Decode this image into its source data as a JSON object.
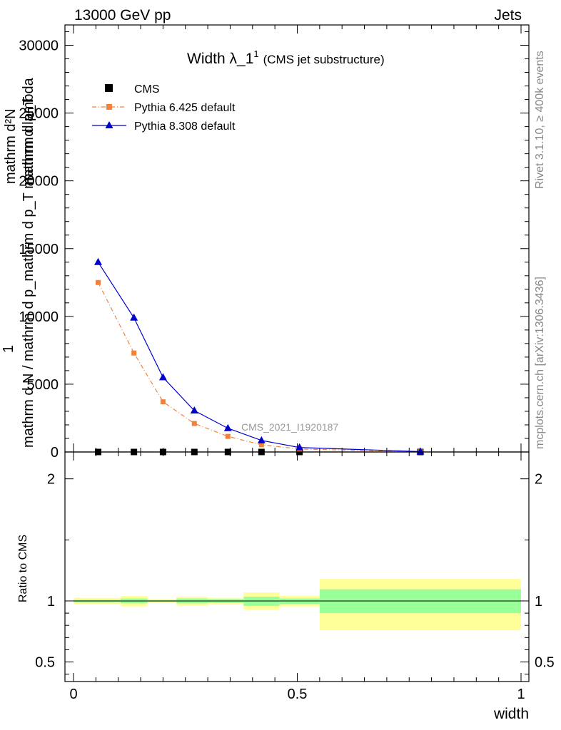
{
  "header": {
    "energy_label": "13000 GeV pp",
    "category_label": "Jets"
  },
  "side_labels": {
    "rivet": "Rivet 3.1.10, ≥ 400k events",
    "mcplots": "mcplots.cern.ch [arXiv:1306.3436]"
  },
  "watermark": "CMS_2021_I1920187",
  "chart_data": [
    {
      "type": "line",
      "title": "Width λ_1",
      "title_sup": "1",
      "subtitle": "(CMS jet substructure)",
      "ylabel_lines": [
        "mathrm d²N",
        "1",
        "mathrm d N / mathrm d p_mathrm d p_T mathrm d lambda",
        "mathrm d p_T"
      ],
      "xlim": [
        0,
        1
      ],
      "ylim": [
        0,
        31500
      ],
      "x_ticks": [],
      "y_ticks": [
        0,
        5000,
        10000,
        15000,
        20000,
        25000,
        30000
      ],
      "y_tick_labels": [
        "0",
        "5000",
        "10000",
        "15000",
        "20000",
        "25000",
        "30000"
      ],
      "legend_position": "top-left",
      "series": [
        {
          "name": "CMS",
          "color": "#000000",
          "marker": "square",
          "x": [
            0.055,
            0.135,
            0.2,
            0.27,
            0.345,
            0.42,
            0.505,
            0.775
          ],
          "y": [
            0,
            0,
            0,
            0,
            0,
            0,
            0,
            0
          ]
        },
        {
          "name": "Pythia 6.425 default",
          "color": "#f4813a",
          "marker": "square",
          "dash": "dash-dot",
          "x": [
            0.055,
            0.135,
            0.2,
            0.27,
            0.345,
            0.42,
            0.505,
            0.775
          ],
          "y": [
            12500,
            7300,
            3700,
            2100,
            1150,
            530,
            220,
            20
          ]
        },
        {
          "name": "Pythia 8.308 default",
          "color": "#0000cc",
          "marker": "triangle",
          "x": [
            0.055,
            0.135,
            0.2,
            0.27,
            0.345,
            0.42,
            0.505,
            0.775
          ],
          "y": [
            14000,
            9900,
            5500,
            3050,
            1750,
            850,
            330,
            30
          ]
        }
      ]
    },
    {
      "type": "area",
      "ylabel": "Ratio to CMS",
      "xlabel": "width",
      "xlim": [
        0,
        1
      ],
      "ylim": [
        0.34,
        2.22
      ],
      "x_ticks": [
        0,
        0.5,
        1
      ],
      "x_tick_labels": [
        "0",
        "0.5",
        "1"
      ],
      "y_ticks": [
        0.5,
        1,
        2
      ],
      "y_tick_labels": [
        "0.5",
        "1",
        "2"
      ],
      "reference_line": 1,
      "bands": [
        {
          "x0": 0.0,
          "x1": 0.105,
          "outer": [
            0.975,
            1.025
          ],
          "inner": [
            0.99,
            1.01
          ]
        },
        {
          "x0": 0.105,
          "x1": 0.165,
          "outer": [
            0.955,
            1.04
          ],
          "inner": [
            0.98,
            1.02
          ]
        },
        {
          "x0": 0.165,
          "x1": 0.23,
          "outer": [
            0.985,
            1.015
          ],
          "inner": [
            0.993,
            1.007
          ]
        },
        {
          "x0": 0.23,
          "x1": 0.3,
          "outer": [
            0.96,
            1.035
          ],
          "inner": [
            0.98,
            1.02
          ]
        },
        {
          "x0": 0.3,
          "x1": 0.38,
          "outer": [
            0.97,
            1.025
          ],
          "inner": [
            0.985,
            1.015
          ]
        },
        {
          "x0": 0.38,
          "x1": 0.46,
          "outer": [
            0.93,
            1.07
          ],
          "inner": [
            0.96,
            1.035
          ]
        },
        {
          "x0": 0.46,
          "x1": 0.55,
          "outer": [
            0.955,
            1.04
          ],
          "inner": [
            0.975,
            1.02
          ]
        },
        {
          "x0": 0.55,
          "x1": 1.0,
          "outer": [
            0.76,
            1.18
          ],
          "inner": [
            0.9,
            1.095
          ]
        }
      ],
      "band_colors": {
        "outer": "#ffff99",
        "inner": "#99ff99"
      }
    }
  ]
}
